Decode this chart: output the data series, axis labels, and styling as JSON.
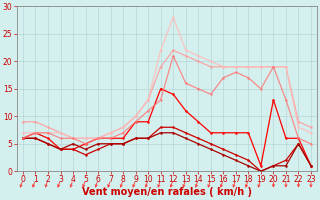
{
  "x": [
    0,
    1,
    2,
    3,
    4,
    5,
    6,
    7,
    8,
    9,
    10,
    11,
    12,
    13,
    14,
    15,
    16,
    17,
    18,
    19,
    20,
    21,
    22,
    23
  ],
  "series": [
    {
      "color": "#ff0000",
      "alpha": 1.0,
      "lw": 0.9,
      "values": [
        6,
        7,
        6,
        4,
        4,
        5,
        6,
        6,
        6,
        9,
        9,
        15,
        14,
        11,
        9,
        7,
        7,
        7,
        7,
        1,
        13,
        6,
        6,
        1
      ]
    },
    {
      "color": "#cc0000",
      "alpha": 1.0,
      "lw": 0.9,
      "values": [
        6,
        6,
        5,
        4,
        4,
        3,
        4,
        5,
        5,
        6,
        6,
        8,
        8,
        7,
        6,
        5,
        4,
        3,
        2,
        0,
        1,
        2,
        5,
        1
      ]
    },
    {
      "color": "#aa0000",
      "alpha": 1.0,
      "lw": 0.9,
      "values": [
        6,
        6,
        5,
        4,
        5,
        4,
        5,
        5,
        5,
        6,
        6,
        7,
        7,
        6,
        5,
        4,
        3,
        2,
        1,
        0,
        1,
        1,
        5,
        1
      ]
    },
    {
      "color": "#ff9999",
      "alpha": 0.85,
      "lw": 0.9,
      "values": [
        9,
        9,
        8,
        7,
        6,
        6,
        6,
        7,
        8,
        10,
        13,
        19,
        22,
        21,
        20,
        19,
        19,
        19,
        19,
        19,
        19,
        19,
        9,
        8
      ]
    },
    {
      "color": "#ffbbbb",
      "alpha": 0.85,
      "lw": 0.9,
      "values": [
        7,
        7,
        7,
        7,
        6,
        6,
        6,
        7,
        8,
        10,
        13,
        22,
        28,
        22,
        21,
        20,
        19,
        19,
        19,
        19,
        19,
        19,
        8,
        7
      ]
    },
    {
      "color": "#ff7777",
      "alpha": 0.85,
      "lw": 0.9,
      "values": [
        6,
        7,
        7,
        6,
        6,
        5,
        6,
        6,
        7,
        9,
        11,
        13,
        21,
        16,
        15,
        14,
        17,
        18,
        17,
        15,
        19,
        13,
        6,
        5
      ]
    }
  ],
  "bg_color": "#d4f0ee",
  "grid_color": "#aacccc",
  "xlabel": "Vent moyen/en rafales ( km/h )",
  "xlim": [
    -0.5,
    23.5
  ],
  "ylim": [
    0,
    30
  ],
  "yticks": [
    0,
    5,
    10,
    15,
    20,
    25,
    30
  ],
  "xticks": [
    0,
    1,
    2,
    3,
    4,
    5,
    6,
    7,
    8,
    9,
    10,
    11,
    12,
    13,
    14,
    15,
    16,
    17,
    18,
    19,
    20,
    21,
    22,
    23
  ],
  "tick_fontsize": 5.5,
  "xlabel_fontsize": 7.0,
  "xlabel_color": "#cc0000",
  "tick_color": "#cc0000",
  "axis_color": "#888888",
  "arrow_color": "#ff3333",
  "arrow_ybase": -3.5,
  "arrow_ytop": -1.5
}
